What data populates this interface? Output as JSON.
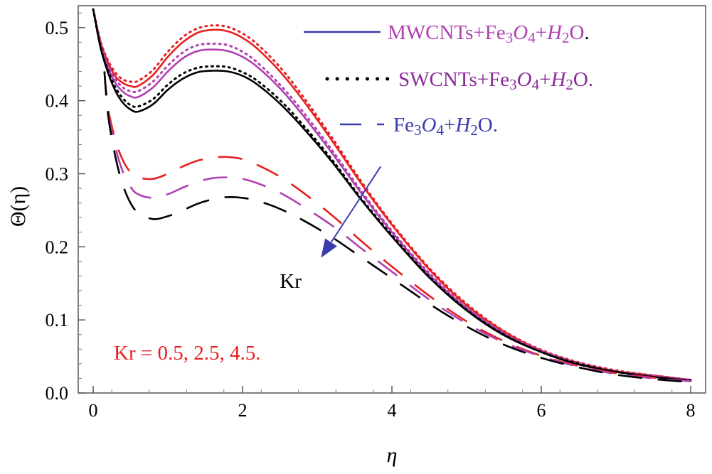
{
  "chart_data": {
    "type": "line",
    "title": "",
    "xlabel": "η",
    "ylabel": "Θ(η)",
    "xlim": [
      -0.2,
      8.2
    ],
    "ylim": [
      0.0,
      0.53
    ],
    "xticks": [
      0,
      2,
      4,
      6,
      8
    ],
    "yticks": [
      0.0,
      0.1,
      0.2,
      0.3,
      0.4,
      0.5
    ],
    "xtick_labels": [
      "0",
      "2",
      "4",
      "6",
      "8"
    ],
    "ytick_labels": [
      "0.0",
      "0.1",
      "0.2",
      "0.3",
      "0.4",
      "0.5"
    ],
    "grid": false,
    "legend_position": "top-right",
    "legend": [
      {
        "style": "solid",
        "color": "#3b3bb0",
        "parts": [
          {
            "t": "MWCNTs+Fe",
            "it": false,
            "sub": false,
            "color": "#b040b0"
          },
          {
            "t": "3",
            "it": false,
            "sub": true,
            "color": "#b040b0"
          },
          {
            "t": "O",
            "it": true,
            "sub": false,
            "color": "#b040b0"
          },
          {
            "t": "4",
            "it": false,
            "sub": true,
            "color": "#b040b0"
          },
          {
            "t": "+",
            "it": false,
            "sub": false,
            "color": "#b040b0"
          },
          {
            "t": "H",
            "it": true,
            "sub": false,
            "color": "#b040b0"
          },
          {
            "t": "2",
            "it": false,
            "sub": true,
            "color": "#b040b0"
          },
          {
            "t": "O",
            "it": false,
            "sub": false,
            "color": "#b040b0"
          },
          {
            "t": ".",
            "it": false,
            "sub": false,
            "color": "#000000"
          }
        ]
      },
      {
        "style": "dotted",
        "color": "#000000",
        "parts": [
          {
            "t": "SWCNTs+Fe",
            "it": false,
            "sub": false,
            "color": "#8a2a9a"
          },
          {
            "t": "3",
            "it": false,
            "sub": true,
            "color": "#8a2a9a"
          },
          {
            "t": "O",
            "it": true,
            "sub": false,
            "color": "#8a2a9a"
          },
          {
            "t": "4",
            "it": false,
            "sub": true,
            "color": "#8a2a9a"
          },
          {
            "t": "+",
            "it": false,
            "sub": false,
            "color": "#8a2a9a"
          },
          {
            "t": "H",
            "it": true,
            "sub": false,
            "color": "#8a2a9a"
          },
          {
            "t": "2",
            "it": false,
            "sub": true,
            "color": "#8a2a9a"
          },
          {
            "t": "O.",
            "it": false,
            "sub": false,
            "color": "#8a2a9a"
          }
        ]
      },
      {
        "style": "dashed",
        "color": "#3b3bb0",
        "parts": [
          {
            "t": "Fe",
            "it": false,
            "sub": false,
            "color": "#3b3bb0"
          },
          {
            "t": "3",
            "it": false,
            "sub": true,
            "color": "#3b3bb0"
          },
          {
            "t": "O",
            "it": true,
            "sub": false,
            "color": "#3b3bb0"
          },
          {
            "t": "4",
            "it": false,
            "sub": true,
            "color": "#3b3bb0"
          },
          {
            "t": "+",
            "it": false,
            "sub": false,
            "color": "#3b3bb0"
          },
          {
            "t": "H",
            "it": true,
            "sub": false,
            "color": "#3b3bb0"
          },
          {
            "t": "2",
            "it": false,
            "sub": true,
            "color": "#3b3bb0"
          },
          {
            "t": "O.",
            "it": false,
            "sub": false,
            "color": "#3b3bb0"
          }
        ]
      }
    ],
    "annotations": {
      "arrow_label": "Kr",
      "arrow_color": "#3b3bb0",
      "arrow_from": [
        3.85,
        0.31
      ],
      "arrow_to": [
        3.05,
        0.185
      ],
      "kr_values_text": "Kr = 0.5, 2.5, 4.5.",
      "kr_values_color": "#e62020"
    },
    "series": [
      {
        "name": "MWCNTs Kr=0.5",
        "fluid": "MWCNTs",
        "kr": 0.5,
        "style": "solid",
        "color": "#e62020",
        "x": [
          0,
          0.1,
          0.2,
          0.3,
          0.4,
          0.5,
          0.6,
          0.8,
          1.0,
          1.2,
          1.4,
          1.6,
          1.8,
          2.0,
          2.2,
          2.5,
          2.8,
          3.2,
          3.6,
          4.0,
          4.5,
          5.0,
          5.5,
          6.0,
          6.5,
          7.0,
          7.5,
          8.0
        ],
        "y": [
          0.525,
          0.48,
          0.452,
          0.433,
          0.424,
          0.42,
          0.42,
          0.435,
          0.46,
          0.48,
          0.493,
          0.497,
          0.495,
          0.486,
          0.471,
          0.44,
          0.402,
          0.345,
          0.285,
          0.23,
          0.169,
          0.12,
          0.084,
          0.058,
          0.041,
          0.03,
          0.024,
          0.018
        ]
      },
      {
        "name": "SWCNTs Kr=0.5",
        "fluid": "SWCNTs",
        "kr": 0.5,
        "style": "dotted",
        "color": "#e62020",
        "x": [
          0,
          0.1,
          0.2,
          0.3,
          0.4,
          0.5,
          0.6,
          0.8,
          1.0,
          1.2,
          1.4,
          1.6,
          1.8,
          2.0,
          2.2,
          2.5,
          2.8,
          3.2,
          3.6,
          4.0,
          4.5,
          5.0,
          5.5,
          6.0,
          6.5,
          7.0,
          7.5,
          8.0
        ],
        "y": [
          0.525,
          0.481,
          0.455,
          0.438,
          0.429,
          0.426,
          0.427,
          0.442,
          0.467,
          0.487,
          0.499,
          0.503,
          0.501,
          0.492,
          0.477,
          0.446,
          0.407,
          0.349,
          0.288,
          0.232,
          0.171,
          0.122,
          0.085,
          0.059,
          0.042,
          0.031,
          0.024,
          0.018
        ]
      },
      {
        "name": "MWCNTs Kr=2.5",
        "fluid": "MWCNTs",
        "kr": 2.5,
        "style": "solid",
        "color": "#b040b0",
        "x": [
          0,
          0.1,
          0.2,
          0.3,
          0.4,
          0.5,
          0.6,
          0.8,
          1.0,
          1.2,
          1.4,
          1.6,
          1.8,
          2.0,
          2.2,
          2.5,
          2.8,
          3.2,
          3.6,
          4.0,
          4.5,
          5.0,
          5.5,
          6.0,
          6.5,
          7.0,
          7.5,
          8.0
        ],
        "y": [
          0.525,
          0.476,
          0.445,
          0.424,
          0.412,
          0.406,
          0.405,
          0.418,
          0.44,
          0.458,
          0.468,
          0.47,
          0.468,
          0.46,
          0.446,
          0.417,
          0.381,
          0.328,
          0.272,
          0.22,
          0.162,
          0.116,
          0.081,
          0.057,
          0.04,
          0.029,
          0.023,
          0.018
        ]
      },
      {
        "name": "SWCNTs Kr=2.5",
        "fluid": "SWCNTs",
        "kr": 2.5,
        "style": "dotted",
        "color": "#b040b0",
        "x": [
          0,
          0.1,
          0.2,
          0.3,
          0.4,
          0.5,
          0.6,
          0.8,
          1.0,
          1.2,
          1.4,
          1.6,
          1.8,
          2.0,
          2.2,
          2.5,
          2.8,
          3.2,
          3.6,
          4.0,
          4.5,
          5.0,
          5.5,
          6.0,
          6.5,
          7.0,
          7.5,
          8.0
        ],
        "y": [
          0.525,
          0.477,
          0.448,
          0.429,
          0.418,
          0.413,
          0.413,
          0.426,
          0.448,
          0.466,
          0.476,
          0.478,
          0.476,
          0.467,
          0.452,
          0.422,
          0.386,
          0.332,
          0.275,
          0.222,
          0.164,
          0.117,
          0.082,
          0.058,
          0.041,
          0.03,
          0.023,
          0.018
        ]
      },
      {
        "name": "MWCNTs Kr=4.5",
        "fluid": "MWCNTs",
        "kr": 4.5,
        "style": "solid",
        "color": "#000000",
        "x": [
          0,
          0.1,
          0.2,
          0.3,
          0.4,
          0.5,
          0.6,
          0.8,
          1.0,
          1.2,
          1.4,
          1.6,
          1.8,
          2.0,
          2.2,
          2.5,
          2.8,
          3.2,
          3.6,
          4.0,
          4.5,
          5.0,
          5.5,
          6.0,
          6.5,
          7.0,
          7.5,
          8.0
        ],
        "y": [
          0.525,
          0.472,
          0.438,
          0.413,
          0.397,
          0.388,
          0.385,
          0.395,
          0.415,
          0.43,
          0.439,
          0.441,
          0.44,
          0.434,
          0.422,
          0.396,
          0.364,
          0.316,
          0.263,
          0.214,
          0.158,
          0.113,
          0.079,
          0.056,
          0.039,
          0.029,
          0.022,
          0.017
        ]
      },
      {
        "name": "SWCNTs Kr=4.5",
        "fluid": "SWCNTs",
        "kr": 4.5,
        "style": "dotted",
        "color": "#000000",
        "x": [
          0,
          0.1,
          0.2,
          0.3,
          0.4,
          0.5,
          0.6,
          0.8,
          1.0,
          1.2,
          1.4,
          1.6,
          1.8,
          2.0,
          2.2,
          2.5,
          2.8,
          3.2,
          3.6,
          4.0,
          4.5,
          5.0,
          5.5,
          6.0,
          6.5,
          7.0,
          7.5,
          8.0
        ],
        "y": [
          0.525,
          0.473,
          0.441,
          0.418,
          0.403,
          0.394,
          0.392,
          0.402,
          0.422,
          0.437,
          0.445,
          0.447,
          0.446,
          0.439,
          0.427,
          0.401,
          0.368,
          0.319,
          0.265,
          0.216,
          0.159,
          0.114,
          0.08,
          0.056,
          0.04,
          0.029,
          0.022,
          0.017
        ]
      },
      {
        "name": "Fe3O4 Kr=0.5",
        "fluid": "Fe3O4",
        "kr": 0.5,
        "style": "dashed",
        "color": "#e62020",
        "x": [
          0.15,
          0.2,
          0.3,
          0.4,
          0.5,
          0.6,
          0.8,
          1.0,
          1.2,
          1.4,
          1.6,
          1.8,
          2.0,
          2.2,
          2.5,
          2.8,
          3.2,
          3.6,
          4.0,
          4.5,
          5.0,
          5.5,
          6.0,
          6.5,
          7.0,
          7.5,
          8.0
        ],
        "y": [
          0.44,
          0.39,
          0.345,
          0.318,
          0.302,
          0.295,
          0.293,
          0.3,
          0.31,
          0.318,
          0.322,
          0.323,
          0.32,
          0.312,
          0.296,
          0.275,
          0.243,
          0.207,
          0.173,
          0.133,
          0.098,
          0.071,
          0.051,
          0.037,
          0.027,
          0.021,
          0.016
        ]
      },
      {
        "name": "Fe3O4 Kr=2.5",
        "fluid": "Fe3O4",
        "kr": 2.5,
        "style": "dashed",
        "color": "#b040b0",
        "x": [
          0.15,
          0.2,
          0.3,
          0.4,
          0.5,
          0.6,
          0.8,
          1.0,
          1.2,
          1.4,
          1.6,
          1.8,
          2.0,
          2.2,
          2.5,
          2.8,
          3.2,
          3.6,
          4.0,
          4.5,
          5.0,
          5.5,
          6.0,
          6.5,
          7.0,
          7.5,
          8.0
        ],
        "y": [
          0.44,
          0.385,
          0.335,
          0.302,
          0.282,
          0.272,
          0.267,
          0.272,
          0.281,
          0.289,
          0.294,
          0.295,
          0.293,
          0.287,
          0.274,
          0.256,
          0.229,
          0.197,
          0.166,
          0.128,
          0.095,
          0.069,
          0.05,
          0.036,
          0.026,
          0.02,
          0.016
        ]
      },
      {
        "name": "Fe3O4 Kr=4.5",
        "fluid": "Fe3O4",
        "kr": 4.5,
        "style": "dashed",
        "color": "#000000",
        "x": [
          0.15,
          0.2,
          0.3,
          0.4,
          0.5,
          0.6,
          0.8,
          1.0,
          1.2,
          1.4,
          1.6,
          1.8,
          2.0,
          2.2,
          2.5,
          2.8,
          3.2,
          3.6,
          4.0,
          4.5,
          5.0,
          5.5,
          6.0,
          6.5,
          7.0,
          7.5,
          8.0
        ],
        "y": [
          0.44,
          0.38,
          0.322,
          0.284,
          0.26,
          0.247,
          0.238,
          0.242,
          0.25,
          0.259,
          0.265,
          0.268,
          0.267,
          0.263,
          0.252,
          0.237,
          0.213,
          0.185,
          0.157,
          0.122,
          0.091,
          0.066,
          0.048,
          0.035,
          0.025,
          0.019,
          0.015
        ]
      }
    ]
  }
}
